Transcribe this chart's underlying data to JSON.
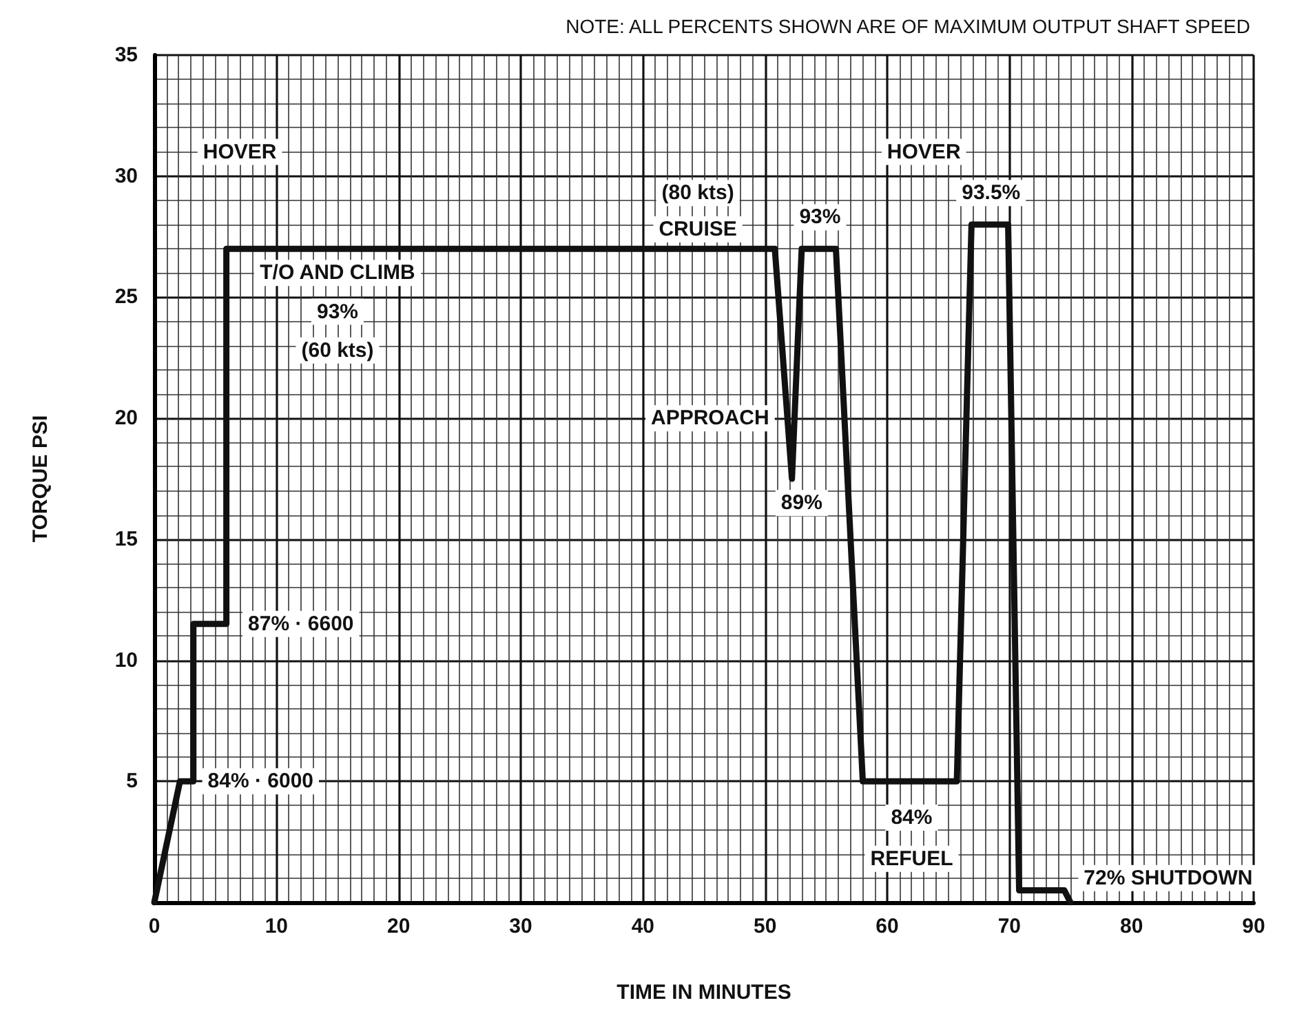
{
  "chart_data": {
    "type": "line",
    "xlabel": "TIME IN MINUTES",
    "ylabel": "TORQUE PSI",
    "x": [
      0,
      2.1,
      3.2,
      3.2,
      5.9,
      5.9,
      50.8,
      52.2,
      53,
      55.8,
      58,
      65.7,
      66.9,
      69.9,
      70.8,
      74.5,
      75
    ],
    "series": [
      {
        "color": "#111111",
        "values": [
          0,
          5,
          5,
          11.5,
          11.5,
          27,
          27,
          17.5,
          27,
          27,
          5,
          5,
          28,
          28,
          0.5,
          0.5,
          0
        ]
      }
    ],
    "xlim": [
      0,
      90
    ],
    "xticks": [
      0,
      10,
      20,
      30,
      40,
      50,
      60,
      70,
      80,
      90
    ],
    "ylim": [
      0,
      35
    ],
    "yticks": [
      {
        "value": 0,
        "label": null
      },
      5,
      10,
      15,
      20,
      25,
      30,
      35
    ],
    "grid": true,
    "marker": "none",
    "line_style": "solid",
    "annotations": [
      "NOTE: ALL PERCENTS SHOWN ARE OF MAXIMUM OUTPUT SHAFT SPEED",
      "HOVER",
      "HOVER",
      "(80 kts)",
      "CRUISE",
      "T/O AND CLIMB",
      "93%",
      "(60 kts)",
      "APPROACH",
      "93%",
      "89%",
      "93.5%",
      "87% · 6600",
      "84% · 6000",
      "84%",
      "REFUEL",
      "72% SHUTDOWN"
    ]
  }
}
